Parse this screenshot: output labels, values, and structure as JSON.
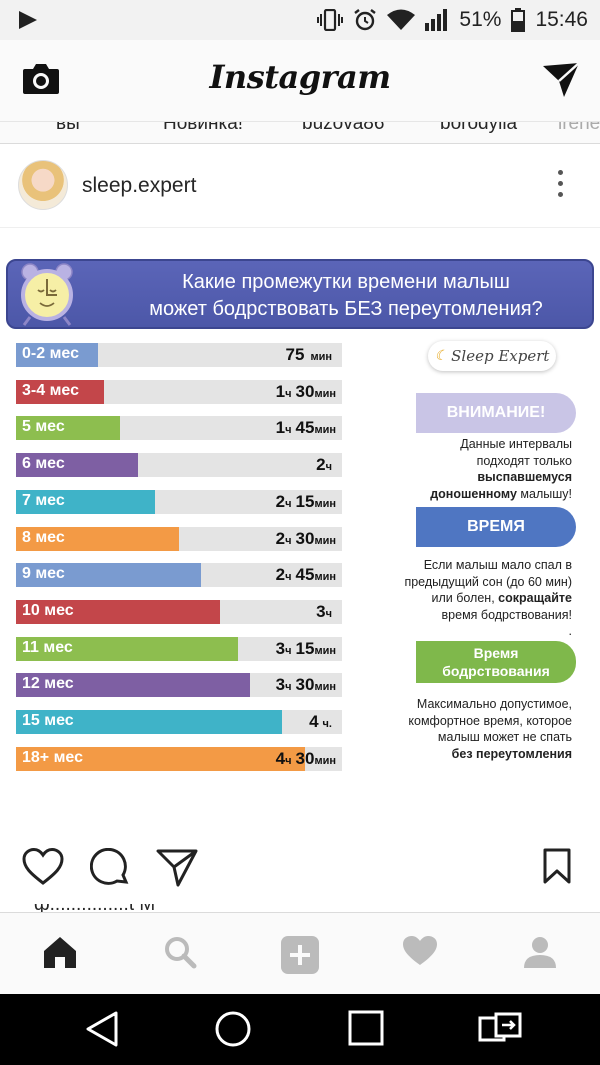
{
  "status_bar": {
    "battery": "51%",
    "time": "15:46"
  },
  "header": {
    "logo": "Instagram"
  },
  "stories": [
    "вы",
    "Новинка!",
    "buzova86",
    "borodylia",
    "irene"
  ],
  "post": {
    "username": "sleep.expert"
  },
  "infographic": {
    "title_line1": "Какие промежутки времени малыш",
    "title_line2": "может бодрствовать БЕЗ переутомления?",
    "logo_text": "Sleep Expert",
    "rows": [
      {
        "label": "0-2 мес",
        "num1": "75",
        "unit1": "мин",
        "num2": "",
        "unit2": "",
        "color": "#7a9bd0",
        "fraction": 0.25
      },
      {
        "label": "3-4 мес",
        "num1": "1",
        "unit1": "ч",
        "num2": "30",
        "unit2": "мин",
        "color": "#c3464a",
        "fraction": 0.27
      },
      {
        "label": "5 мес",
        "num1": "1",
        "unit1": "ч",
        "num2": "45",
        "unit2": "мин",
        "color": "#8dbe4f",
        "fraction": 0.32
      },
      {
        "label": "6 мес",
        "num1": "2",
        "unit1": "ч",
        "num2": "",
        "unit2": "",
        "color": "#7e5fa3",
        "fraction": 0.375
      },
      {
        "label": "7 мес",
        "num1": "2",
        "unit1": "ч",
        "num2": "15",
        "unit2": "мин",
        "color": "#3fb3c8",
        "fraction": 0.425
      },
      {
        "label": "8 мес",
        "num1": "2",
        "unit1": "ч",
        "num2": "30",
        "unit2": "мин",
        "color": "#f39a45",
        "fraction": 0.5
      },
      {
        "label": "9 мес",
        "num1": "2",
        "unit1": "ч",
        "num2": "45",
        "unit2": "мин",
        "color": "#7a9bd0",
        "fraction": 0.568
      },
      {
        "label": "10 мес",
        "num1": "3",
        "unit1": "ч",
        "num2": "",
        "unit2": "",
        "color": "#c3464a",
        "fraction": 0.625
      },
      {
        "label": "11 мес",
        "num1": "3",
        "unit1": "ч",
        "num2": "15",
        "unit2": "мин",
        "color": "#8dbe4f",
        "fraction": 0.68
      },
      {
        "label": "12 мес",
        "num1": "3",
        "unit1": "ч",
        "num2": "30",
        "unit2": "мин",
        "color": "#7e5fa3",
        "fraction": 0.717
      },
      {
        "label": "15 мес",
        "num1": "4",
        "unit1": "ч.",
        "num2": "",
        "unit2": "",
        "color": "#3fb3c8",
        "fraction": 0.815
      },
      {
        "label": "18+ мес",
        "num1": "4",
        "unit1": "ч",
        "num2": "30",
        "unit2": "мин",
        "color": "#f39a45",
        "fraction": 0.885
      }
    ],
    "attention_label": "ВНИМАНИЕ!",
    "attention_note_1": "Данные интервалы",
    "attention_note_2": "подходят только",
    "attention_note_3": "выспавшемуся",
    "attention_note_4": "доношенному",
    "attention_note_5": " малышу!",
    "time_label": "ВРЕМЯ",
    "time_note_1": "Если малыш мало спал в",
    "time_note_2": "предыдущий сон (до 60 мин)",
    "time_note_3": "или болен, ",
    "time_note_4": "сокращайте",
    "time_note_5": "время бодрствования!",
    "time_note_6": ".",
    "awake_label_1": "Время",
    "awake_label_2": "бодрствования",
    "awake_note_1": "Максимально допустимое,",
    "awake_note_2": "комфортное  время, которое",
    "awake_note_3": "малыш может не спать",
    "awake_note_4": "без переутомления"
  },
  "caption_partial": "ф...............t M"
}
